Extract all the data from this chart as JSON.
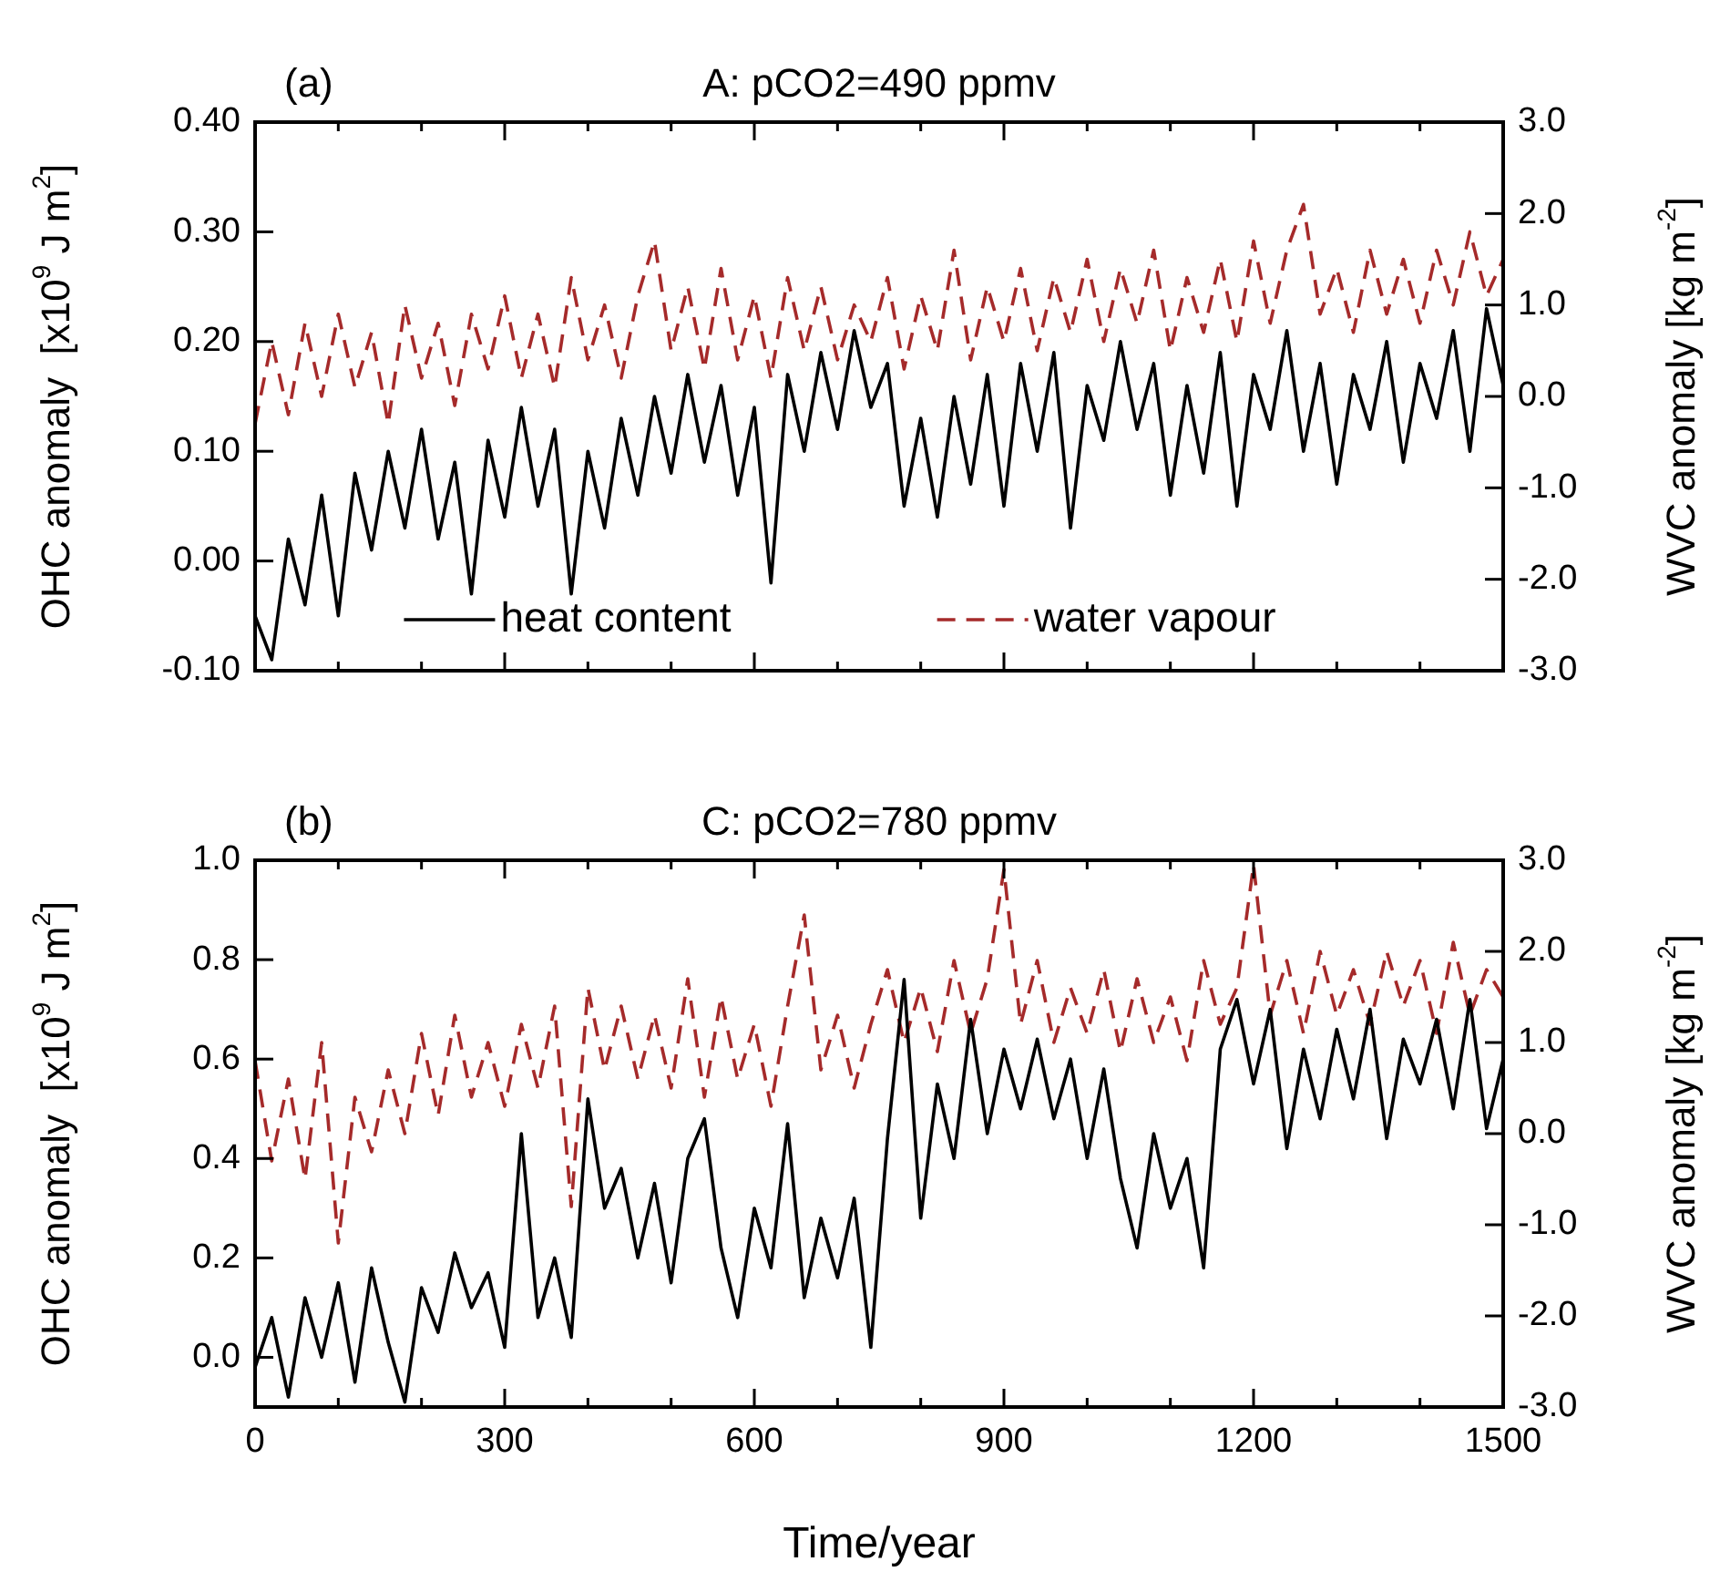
{
  "chart_data": [
    {
      "type": "line",
      "title": "A: pCO2=490 ppmv",
      "annotations": [
        "(a)"
      ],
      "ylabel": "OHC anomaly  [x10$^{9}$ J m$^{2}$]",
      "y2label": "WVC anomaly [kg m$^{-2}$]",
      "legend": "bottom",
      "tick_labels": "y",
      "x": [
        0,
        20,
        40,
        60,
        80,
        100,
        120,
        140,
        160,
        180,
        200,
        220,
        240,
        260,
        280,
        300,
        320,
        340,
        360,
        380,
        400,
        420,
        440,
        460,
        480,
        500,
        520,
        540,
        560,
        580,
        600,
        620,
        640,
        660,
        680,
        700,
        720,
        740,
        760,
        780,
        800,
        820,
        840,
        860,
        880,
        900,
        920,
        940,
        960,
        980,
        1000,
        1020,
        1040,
        1060,
        1080,
        1100,
        1120,
        1140,
        1160,
        1180,
        1200,
        1220,
        1240,
        1260,
        1280,
        1300,
        1320,
        1340,
        1360,
        1380,
        1400,
        1420,
        1440,
        1460,
        1480,
        1500
      ],
      "xlim": [
        0,
        1500
      ],
      "xticks": [
        0,
        {
          "value": 100,
          "label": null
        },
        {
          "value": 200,
          "label": null
        },
        300,
        {
          "value": 400,
          "label": null
        },
        {
          "value": 500,
          "label": null
        },
        600,
        {
          "value": 700,
          "label": null
        },
        {
          "value": 800,
          "label": null
        },
        900,
        {
          "value": 1000,
          "label": null
        },
        {
          "value": 1100,
          "label": null
        },
        1200,
        {
          "value": 1300,
          "label": null
        },
        {
          "value": 1400,
          "label": null
        },
        1500
      ],
      "ylim": [
        -0.1,
        0.4
      ],
      "yticks": [
        {
          "value": -0.1,
          "label": "-0.10"
        },
        {
          "value": 0,
          "label": "0.00"
        },
        {
          "value": 0.1,
          "label": "0.10"
        },
        {
          "value": 0.2,
          "label": "0.20"
        },
        {
          "value": 0.3,
          "label": "0.30"
        },
        {
          "value": 0.4,
          "label": "0.40"
        }
      ],
      "y2lim": [
        -3,
        3
      ],
      "y2ticks": [
        {
          "value": -3,
          "label": "-3.0"
        },
        {
          "value": -2,
          "label": "-2.0"
        },
        {
          "value": -1,
          "label": "-1.0"
        },
        {
          "value": 0,
          "label": "0.0"
        },
        {
          "value": 1,
          "label": "1.0"
        },
        {
          "value": 2,
          "label": "2.0"
        },
        {
          "value": 3,
          "label": "3.0"
        }
      ],
      "series": [
        {
          "name": "heat content",
          "type": "line",
          "color": "#000000",
          "line_style": "solid",
          "values": [
            -0.05,
            -0.09,
            0.02,
            -0.04,
            0.06,
            -0.05,
            0.08,
            0.01,
            0.1,
            0.03,
            0.12,
            0.02,
            0.09,
            -0.03,
            0.11,
            0.04,
            0.14,
            0.05,
            0.12,
            -0.03,
            0.1,
            0.03,
            0.13,
            0.06,
            0.15,
            0.08,
            0.17,
            0.09,
            0.16,
            0.06,
            0.14,
            -0.02,
            0.17,
            0.1,
            0.19,
            0.12,
            0.21,
            0.14,
            0.18,
            0.05,
            0.13,
            0.04,
            0.15,
            0.07,
            0.17,
            0.05,
            0.18,
            0.1,
            0.19,
            0.03,
            0.16,
            0.11,
            0.2,
            0.12,
            0.18,
            0.06,
            0.16,
            0.08,
            0.19,
            0.05,
            0.17,
            0.12,
            0.21,
            0.1,
            0.18,
            0.07,
            0.17,
            0.12,
            0.2,
            0.09,
            0.18,
            0.13,
            0.21,
            0.1,
            0.23,
            0.16
          ]
        },
        {
          "name": "water vapour",
          "type": "line",
          "axis": "y2",
          "color": "#a52a2a",
          "line_style": "dashed",
          "values": [
            -0.3,
            0.6,
            -0.2,
            0.8,
            0.0,
            0.9,
            0.1,
            0.7,
            -0.3,
            1.0,
            0.2,
            0.8,
            -0.1,
            0.9,
            0.3,
            1.1,
            0.2,
            0.9,
            0.1,
            1.3,
            0.4,
            1.0,
            0.2,
            1.1,
            1.7,
            0.5,
            1.2,
            0.3,
            1.4,
            0.4,
            1.1,
            0.2,
            1.3,
            0.5,
            1.2,
            0.4,
            1.0,
            0.6,
            1.3,
            0.3,
            1.1,
            0.5,
            1.6,
            0.4,
            1.2,
            0.6,
            1.4,
            0.5,
            1.3,
            0.7,
            1.5,
            0.6,
            1.4,
            0.8,
            1.6,
            0.5,
            1.3,
            0.7,
            1.5,
            0.6,
            1.7,
            0.8,
            1.6,
            2.1,
            0.9,
            1.4,
            0.7,
            1.6,
            0.9,
            1.5,
            0.8,
            1.6,
            1.0,
            1.8,
            1.1,
            1.5
          ]
        }
      ]
    },
    {
      "type": "line",
      "title": "C: pCO2=780 ppmv",
      "annotations": [
        "(b)"
      ],
      "xlabel": "Time/year",
      "ylabel": "OHC anomaly  [x10$^{9}$ J m$^{2}$]",
      "y2label": "WVC anomaly [kg m$^{-2}$]",
      "x": [
        0,
        20,
        40,
        60,
        80,
        100,
        120,
        140,
        160,
        180,
        200,
        220,
        240,
        260,
        280,
        300,
        320,
        340,
        360,
        380,
        400,
        420,
        440,
        460,
        480,
        500,
        520,
        540,
        560,
        580,
        600,
        620,
        640,
        660,
        680,
        700,
        720,
        740,
        760,
        780,
        800,
        820,
        840,
        860,
        880,
        900,
        920,
        940,
        960,
        980,
        1000,
        1020,
        1040,
        1060,
        1080,
        1100,
        1120,
        1140,
        1160,
        1180,
        1200,
        1220,
        1240,
        1260,
        1280,
        1300,
        1320,
        1340,
        1360,
        1380,
        1400,
        1420,
        1440,
        1460,
        1480,
        1500
      ],
      "xlim": [
        0,
        1500
      ],
      "xticks": [
        {
          "value": 0,
          "label": "0"
        },
        {
          "value": 100,
          "label": null
        },
        {
          "value": 200,
          "label": null
        },
        {
          "value": 300,
          "label": "300"
        },
        {
          "value": 400,
          "label": null
        },
        {
          "value": 500,
          "label": null
        },
        {
          "value": 600,
          "label": "600"
        },
        {
          "value": 700,
          "label": null
        },
        {
          "value": 800,
          "label": null
        },
        {
          "value": 900,
          "label": "900"
        },
        {
          "value": 1000,
          "label": null
        },
        {
          "value": 1100,
          "label": null
        },
        {
          "value": 1200,
          "label": "1200"
        },
        {
          "value": 1300,
          "label": null
        },
        {
          "value": 1400,
          "label": null
        },
        {
          "value": 1500,
          "label": "1500"
        }
      ],
      "ylim": [
        -0.1,
        1.0
      ],
      "yticks": [
        {
          "value": 0,
          "label": "0.0"
        },
        {
          "value": 0.2,
          "label": "0.2"
        },
        {
          "value": 0.4,
          "label": "0.4"
        },
        {
          "value": 0.6,
          "label": "0.6"
        },
        {
          "value": 0.8,
          "label": "0.8"
        },
        {
          "value": 1.0,
          "label": "1.0"
        }
      ],
      "y2lim": [
        -3,
        3
      ],
      "y2ticks": [
        {
          "value": -3,
          "label": "-3.0"
        },
        {
          "value": -2,
          "label": "-2.0"
        },
        {
          "value": -1,
          "label": "-1.0"
        },
        {
          "value": 0,
          "label": "0.0"
        },
        {
          "value": 1,
          "label": "1.0"
        },
        {
          "value": 2,
          "label": "2.0"
        },
        {
          "value": 3,
          "label": "3.0"
        }
      ],
      "series": [
        {
          "type": "line",
          "color": "#000000",
          "line_style": "solid",
          "values": [
            -0.02,
            0.08,
            -0.08,
            0.12,
            0.0,
            0.15,
            -0.05,
            0.18,
            0.03,
            -0.09,
            0.14,
            0.05,
            0.21,
            0.1,
            0.17,
            0.02,
            0.45,
            0.08,
            0.2,
            0.04,
            0.52,
            0.3,
            0.38,
            0.2,
            0.35,
            0.15,
            0.4,
            0.48,
            0.22,
            0.08,
            0.3,
            0.18,
            0.47,
            0.12,
            0.28,
            0.16,
            0.32,
            0.02,
            0.44,
            0.76,
            0.28,
            0.55,
            0.4,
            0.68,
            0.45,
            0.62,
            0.5,
            0.64,
            0.48,
            0.6,
            0.4,
            0.58,
            0.36,
            0.22,
            0.45,
            0.3,
            0.4,
            0.18,
            0.62,
            0.72,
            0.55,
            0.7,
            0.42,
            0.62,
            0.48,
            0.66,
            0.52,
            0.7,
            0.44,
            0.64,
            0.55,
            0.68,
            0.5,
            0.72,
            0.46,
            0.6
          ]
        },
        {
          "type": "line",
          "axis": "y2",
          "color": "#a52a2a",
          "line_style": "dashed",
          "values": [
            0.8,
            -0.3,
            0.6,
            -0.5,
            1.0,
            -1.2,
            0.4,
            -0.2,
            0.7,
            0.0,
            1.1,
            0.2,
            1.3,
            0.4,
            1.0,
            0.3,
            1.2,
            0.5,
            1.4,
            -0.8,
            1.6,
            0.7,
            1.4,
            0.6,
            1.3,
            0.5,
            1.7,
            0.4,
            1.5,
            0.6,
            1.2,
            0.3,
            1.4,
            2.4,
            0.7,
            1.3,
            0.5,
            1.2,
            1.8,
            1.0,
            1.6,
            0.9,
            1.9,
            1.1,
            1.7,
            2.9,
            1.2,
            1.9,
            1.0,
            1.6,
            1.1,
            1.8,
            0.9,
            1.7,
            1.0,
            1.5,
            0.8,
            1.9,
            1.2,
            1.6,
            2.95,
            1.3,
            1.9,
            1.1,
            2.0,
            1.3,
            1.8,
            1.2,
            2.0,
            1.4,
            1.9,
            1.1,
            2.1,
            1.3,
            1.8,
            1.5
          ]
        }
      ]
    }
  ]
}
